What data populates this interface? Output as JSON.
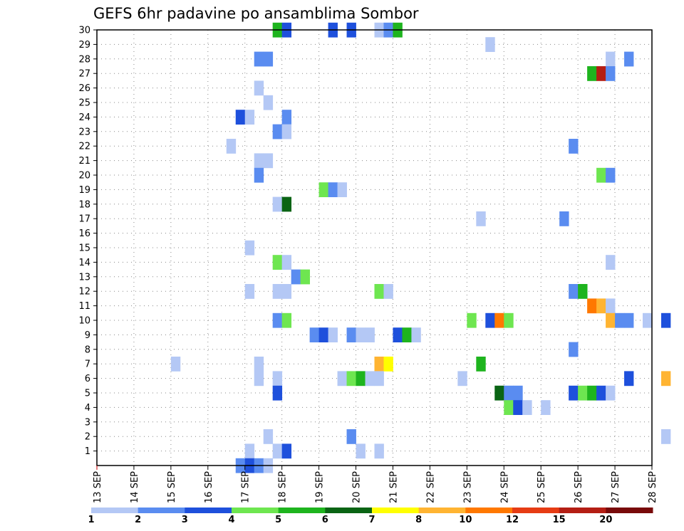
{
  "chart_data": {
    "type": "heatmap",
    "title": "GEFS 6hr padavine po ansamblima Sombor",
    "xlabel": "",
    "ylabel": "",
    "x_ticks": [
      "13 SEP",
      "14 SEP",
      "15 SEP",
      "16 SEP",
      "17 SEP",
      "18 SEP",
      "19 SEP",
      "20 SEP",
      "21 SEP",
      "22 SEP",
      "23 SEP",
      "24 SEP",
      "25 SEP",
      "26 SEP",
      "27 SEP",
      "28 SEP"
    ],
    "x_range": [
      0,
      15
    ],
    "y_ticks": [
      1,
      2,
      3,
      4,
      5,
      6,
      7,
      8,
      9,
      10,
      11,
      12,
      13,
      14,
      15,
      16,
      17,
      18,
      19,
      20,
      21,
      22,
      23,
      24,
      25,
      26,
      27,
      28,
      29,
      30
    ],
    "y_range": [
      0,
      30
    ],
    "grid": true,
    "colorbar": {
      "placement": "bottom",
      "labels": [
        "1",
        "2",
        "3",
        "4",
        "5",
        "6",
        "7",
        "8",
        "10",
        "12",
        "15",
        "20"
      ],
      "colors": [
        "#b4c8f5",
        "#5a8cf0",
        "#1e50dc",
        "#6ee650",
        "#1eb41e",
        "#0a6414",
        "#ffff00",
        "#ffb432",
        "#ff7800",
        "#e63c14",
        "#b41e14",
        "#780a0a"
      ]
    },
    "cells": [
      {
        "d": 4.75,
        "m": 30,
        "c": 4
      },
      {
        "d": 5.0,
        "m": 30,
        "c": 2
      },
      {
        "d": 6.25,
        "m": 30,
        "c": 2
      },
      {
        "d": 6.75,
        "m": 30,
        "c": 2
      },
      {
        "d": 7.5,
        "m": 30,
        "c": 0
      },
      {
        "d": 7.75,
        "m": 30,
        "c": 1
      },
      {
        "d": 8.0,
        "m": 30,
        "c": 4
      },
      {
        "d": 10.5,
        "m": 29,
        "c": 0
      },
      {
        "d": 4.25,
        "m": 28,
        "c": 1
      },
      {
        "d": 4.5,
        "m": 28,
        "c": 1
      },
      {
        "d": 13.75,
        "m": 28,
        "c": 0
      },
      {
        "d": 14.25,
        "m": 28,
        "c": 1
      },
      {
        "d": 13.25,
        "m": 27,
        "c": 4
      },
      {
        "d": 13.5,
        "m": 27,
        "c": 10
      },
      {
        "d": 13.75,
        "m": 27,
        "c": 1
      },
      {
        "d": 4.25,
        "m": 26,
        "c": 0
      },
      {
        "d": 4.5,
        "m": 25,
        "c": 0
      },
      {
        "d": 3.75,
        "m": 24,
        "c": 2
      },
      {
        "d": 4.0,
        "m": 24,
        "c": 0
      },
      {
        "d": 5.0,
        "m": 24,
        "c": 1
      },
      {
        "d": 4.75,
        "m": 23,
        "c": 1
      },
      {
        "d": 5.0,
        "m": 23,
        "c": 0
      },
      {
        "d": 3.5,
        "m": 22,
        "c": 0
      },
      {
        "d": 12.75,
        "m": 22,
        "c": 1
      },
      {
        "d": 4.25,
        "m": 21,
        "c": 0
      },
      {
        "d": 4.5,
        "m": 21,
        "c": 0
      },
      {
        "d": 4.25,
        "m": 20,
        "c": 1
      },
      {
        "d": 13.5,
        "m": 20,
        "c": 3
      },
      {
        "d": 13.75,
        "m": 20,
        "c": 1
      },
      {
        "d": 6.0,
        "m": 19,
        "c": 3
      },
      {
        "d": 6.25,
        "m": 19,
        "c": 1
      },
      {
        "d": 6.5,
        "m": 19,
        "c": 0
      },
      {
        "d": 4.75,
        "m": 18,
        "c": 0
      },
      {
        "d": 5.0,
        "m": 18,
        "c": 5
      },
      {
        "d": 10.25,
        "m": 17,
        "c": 0
      },
      {
        "d": 12.5,
        "m": 17,
        "c": 1
      },
      {
        "d": 4.0,
        "m": 15,
        "c": 0
      },
      {
        "d": 4.75,
        "m": 14,
        "c": 3
      },
      {
        "d": 5.0,
        "m": 14,
        "c": 0
      },
      {
        "d": 13.75,
        "m": 14,
        "c": 0
      },
      {
        "d": 5.25,
        "m": 13,
        "c": 1
      },
      {
        "d": 5.5,
        "m": 13,
        "c": 3
      },
      {
        "d": 4.0,
        "m": 12,
        "c": 0
      },
      {
        "d": 4.75,
        "m": 12,
        "c": 0
      },
      {
        "d": 5.0,
        "m": 12,
        "c": 0
      },
      {
        "d": 7.5,
        "m": 12,
        "c": 3
      },
      {
        "d": 7.75,
        "m": 12,
        "c": 0
      },
      {
        "d": 12.75,
        "m": 12,
        "c": 1
      },
      {
        "d": 13.0,
        "m": 12,
        "c": 4
      },
      {
        "d": 13.25,
        "m": 11,
        "c": 8
      },
      {
        "d": 13.5,
        "m": 11,
        "c": 7
      },
      {
        "d": 13.75,
        "m": 11,
        "c": 0
      },
      {
        "d": 4.75,
        "m": 10,
        "c": 1
      },
      {
        "d": 5.0,
        "m": 10,
        "c": 3
      },
      {
        "d": 10.0,
        "m": 10,
        "c": 3
      },
      {
        "d": 10.5,
        "m": 10,
        "c": 2
      },
      {
        "d": 10.75,
        "m": 10,
        "c": 8
      },
      {
        "d": 11.0,
        "m": 10,
        "c": 3
      },
      {
        "d": 13.75,
        "m": 10,
        "c": 7
      },
      {
        "d": 14.0,
        "m": 10,
        "c": 1
      },
      {
        "d": 14.25,
        "m": 10,
        "c": 1
      },
      {
        "d": 14.75,
        "m": 10,
        "c": 0
      },
      {
        "d": 15.25,
        "m": 10,
        "c": 2
      },
      {
        "d": 5.75,
        "m": 9,
        "c": 1
      },
      {
        "d": 6.0,
        "m": 9,
        "c": 2
      },
      {
        "d": 6.25,
        "m": 9,
        "c": 0
      },
      {
        "d": 6.75,
        "m": 9,
        "c": 1
      },
      {
        "d": 7.0,
        "m": 9,
        "c": 0
      },
      {
        "d": 7.25,
        "m": 9,
        "c": 0
      },
      {
        "d": 8.0,
        "m": 9,
        "c": 2
      },
      {
        "d": 8.25,
        "m": 9,
        "c": 4
      },
      {
        "d": 8.5,
        "m": 9,
        "c": 0
      },
      {
        "d": 12.75,
        "m": 8,
        "c": 1
      },
      {
        "d": 2.0,
        "m": 7,
        "c": 0
      },
      {
        "d": 4.25,
        "m": 7,
        "c": 0
      },
      {
        "d": 7.5,
        "m": 7,
        "c": 7
      },
      {
        "d": 7.75,
        "m": 7,
        "c": 6
      },
      {
        "d": 10.25,
        "m": 7,
        "c": 4
      },
      {
        "d": 4.25,
        "m": 6,
        "c": 0
      },
      {
        "d": 4.75,
        "m": 6,
        "c": 0
      },
      {
        "d": 6.5,
        "m": 6,
        "c": 0
      },
      {
        "d": 6.75,
        "m": 6,
        "c": 3
      },
      {
        "d": 7.0,
        "m": 6,
        "c": 4
      },
      {
        "d": 7.25,
        "m": 6,
        "c": 0
      },
      {
        "d": 7.5,
        "m": 6,
        "c": 0
      },
      {
        "d": 9.75,
        "m": 6,
        "c": 0
      },
      {
        "d": 14.25,
        "m": 6,
        "c": 2
      },
      {
        "d": 15.25,
        "m": 6,
        "c": 7
      },
      {
        "d": 4.75,
        "m": 5,
        "c": 2
      },
      {
        "d": 10.75,
        "m": 5,
        "c": 5
      },
      {
        "d": 11.0,
        "m": 5,
        "c": 1
      },
      {
        "d": 11.25,
        "m": 5,
        "c": 1
      },
      {
        "d": 12.75,
        "m": 5,
        "c": 2
      },
      {
        "d": 13.0,
        "m": 5,
        "c": 3
      },
      {
        "d": 13.25,
        "m": 5,
        "c": 4
      },
      {
        "d": 13.5,
        "m": 5,
        "c": 2
      },
      {
        "d": 13.75,
        "m": 5,
        "c": 0
      },
      {
        "d": 11.0,
        "m": 4,
        "c": 3
      },
      {
        "d": 11.25,
        "m": 4,
        "c": 2
      },
      {
        "d": 11.5,
        "m": 4,
        "c": 0
      },
      {
        "d": 12.0,
        "m": 4,
        "c": 0
      },
      {
        "d": 4.5,
        "m": 2,
        "c": 0
      },
      {
        "d": 6.75,
        "m": 2,
        "c": 1
      },
      {
        "d": 15.25,
        "m": 2,
        "c": 0
      },
      {
        "d": 4.0,
        "m": 1,
        "c": 0
      },
      {
        "d": 4.75,
        "m": 1,
        "c": 0
      },
      {
        "d": 5.0,
        "m": 1,
        "c": 2
      },
      {
        "d": 7.0,
        "m": 1,
        "c": 0
      },
      {
        "d": 7.5,
        "m": 1,
        "c": 0
      },
      {
        "d": 3.75,
        "m": 0,
        "c": 1
      },
      {
        "d": 4.0,
        "m": 0,
        "c": 2
      },
      {
        "d": 4.25,
        "m": 0,
        "c": 1
      },
      {
        "d": 4.5,
        "m": 0,
        "c": 0
      }
    ]
  }
}
